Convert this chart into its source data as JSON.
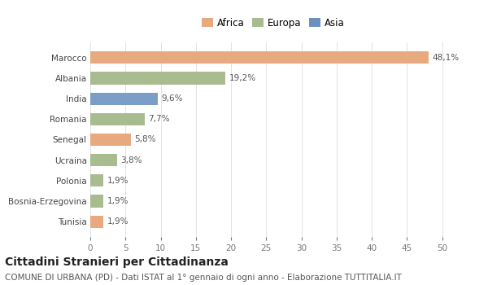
{
  "categories": [
    "Tunisia",
    "Bosnia-Erzegovina",
    "Polonia",
    "Ucraina",
    "Senegal",
    "Romania",
    "India",
    "Albania",
    "Marocco"
  ],
  "values": [
    1.9,
    1.9,
    1.9,
    3.8,
    5.8,
    7.7,
    9.6,
    19.2,
    48.1
  ],
  "labels": [
    "1,9%",
    "1,9%",
    "1,9%",
    "3,8%",
    "5,8%",
    "7,7%",
    "9,6%",
    "19,2%",
    "48,1%"
  ],
  "colors": [
    "#e8a97e",
    "#a8bc8f",
    "#a8bc8f",
    "#a8bc8f",
    "#e8a97e",
    "#a8bc8f",
    "#7b9ec7",
    "#a8bc8f",
    "#e8a97e"
  ],
  "legend": [
    {
      "label": "Africa",
      "color": "#e8a97e"
    },
    {
      "label": "Europa",
      "color": "#a8bc8f"
    },
    {
      "label": "Asia",
      "color": "#6b8fbf"
    }
  ],
  "xlim": [
    0,
    52
  ],
  "xticks": [
    0,
    5,
    10,
    15,
    20,
    25,
    30,
    35,
    40,
    45,
    50
  ],
  "title": "Cittadini Stranieri per Cittadinanza",
  "subtitle": "COMUNE DI URBANA (PD) - Dati ISTAT al 1° gennaio di ogni anno - Elaborazione TUTTITALIA.IT",
  "background_color": "#ffffff",
  "plot_bg_color": "#ffffff",
  "grid_color": "#dddddd",
  "bar_height": 0.6,
  "label_fontsize": 7.5,
  "tick_fontsize": 7.5,
  "legend_fontsize": 8.5,
  "title_fontsize": 10,
  "subtitle_fontsize": 7.5
}
